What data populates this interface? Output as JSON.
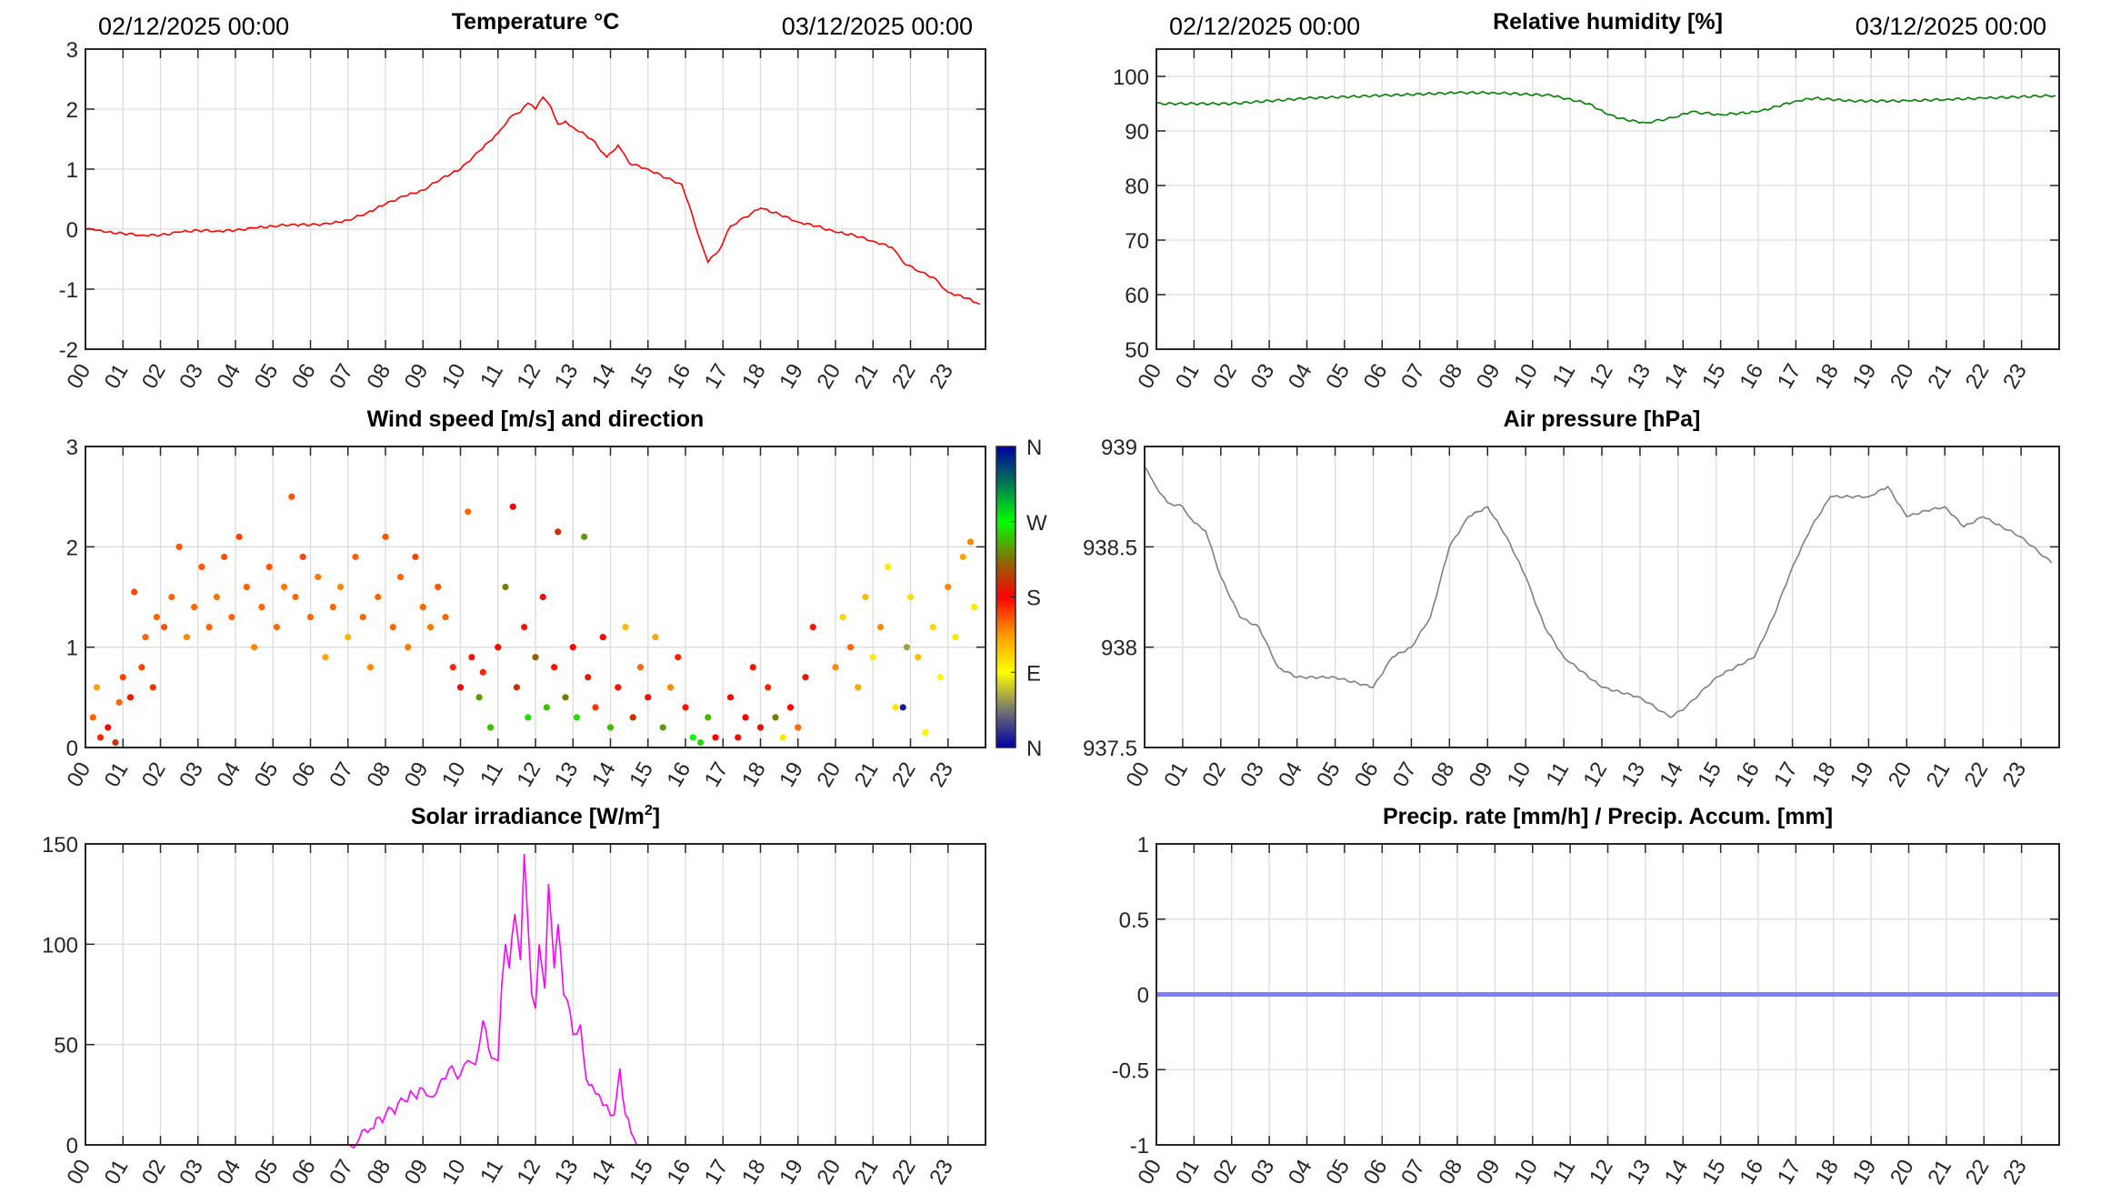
{
  "hour_ticks": [
    "00",
    "01",
    "02",
    "03",
    "04",
    "05",
    "06",
    "07",
    "08",
    "09",
    "10",
    "11",
    "12",
    "13",
    "14",
    "15",
    "16",
    "17",
    "18",
    "19",
    "20",
    "21",
    "22",
    "23"
  ],
  "chart_data": [
    {
      "id": "temperature",
      "type": "line",
      "title": "Temperature °C",
      "date_start": "02/12/2025 00:00",
      "date_end": "03/12/2025 00:00",
      "xlim": [
        0,
        24
      ],
      "ylim": [
        -2,
        3
      ],
      "yticks": [
        "-2",
        "-1",
        "0",
        "1",
        "2",
        "3"
      ],
      "ytick_values": [
        -2,
        -1,
        0,
        1,
        2,
        3
      ],
      "color": "#ff0000",
      "x": [
        0,
        0.3,
        0.5,
        1,
        1.5,
        2,
        2.5,
        3,
        3.5,
        4,
        4.5,
        5,
        5.5,
        6,
        6.5,
        7,
        7.5,
        8,
        8.5,
        9,
        9.5,
        10,
        10.5,
        11,
        11.3,
        11.6,
        11.8,
        12,
        12.2,
        12.4,
        12.6,
        12.8,
        13,
        13.5,
        13.9,
        14.2,
        14.5,
        15,
        15.5,
        15.9,
        16.1,
        16.4,
        16.6,
        16.9,
        17.2,
        17.6,
        18,
        18.5,
        19,
        19.5,
        20,
        20.5,
        21,
        21.5,
        21.8,
        22.2,
        22.6,
        23,
        23.5,
        23.85
      ],
      "y": [
        0,
        -0.02,
        -0.05,
        -0.07,
        -0.1,
        -0.1,
        -0.05,
        -0.02,
        -0.03,
        -0.02,
        0.02,
        0.05,
        0.08,
        0.07,
        0.09,
        0.15,
        0.27,
        0.42,
        0.55,
        0.65,
        0.85,
        1.0,
        1.3,
        1.6,
        1.85,
        1.95,
        2.1,
        2.0,
        2.2,
        2.05,
        1.75,
        1.8,
        1.7,
        1.5,
        1.2,
        1.4,
        1.1,
        1.0,
        0.85,
        0.75,
        0.4,
        -0.2,
        -0.55,
        -0.35,
        0.05,
        0.2,
        0.35,
        0.25,
        0.12,
        0.05,
        -0.05,
        -0.1,
        -0.2,
        -0.3,
        -0.55,
        -0.7,
        -0.8,
        -1.05,
        -1.15,
        -1.25
      ]
    },
    {
      "id": "humidity",
      "type": "line",
      "title": "Relative humidity [%]",
      "date_start": "02/12/2025 00:00",
      "date_end": "03/12/2025 00:00",
      "xlim": [
        0,
        24
      ],
      "ylim": [
        50,
        105
      ],
      "yticks": [
        "50",
        "60",
        "70",
        "80",
        "90",
        "100"
      ],
      "ytick_values": [
        50,
        60,
        70,
        80,
        90,
        100
      ],
      "color": "#008000",
      "x": [
        0,
        2,
        4,
        6,
        8,
        9,
        10.5,
        11.5,
        12,
        12.5,
        13,
        13.8,
        14.2,
        15,
        16,
        16.5,
        17,
        17.5,
        18.5,
        20,
        21,
        22,
        23.9
      ],
      "y": [
        95,
        95,
        96,
        96.5,
        97,
        97,
        96.5,
        95,
        93,
        92,
        91.5,
        92.5,
        93.5,
        93,
        93.5,
        94.5,
        95.5,
        96,
        95.5,
        95.5,
        95.8,
        96,
        96.5
      ]
    },
    {
      "id": "wind",
      "type": "scatter",
      "title": "Wind speed [m/s] and direction",
      "xlim": [
        0,
        24
      ],
      "ylim": [
        0,
        3
      ],
      "yticks": [
        "0",
        "1",
        "2",
        "3"
      ],
      "ytick_values": [
        0,
        1,
        2,
        3
      ],
      "colorbar_labels": [
        "N",
        "E",
        "S",
        "W",
        "N"
      ],
      "points": [
        [
          0.2,
          0.3,
          150
        ],
        [
          0.3,
          0.6,
          130
        ],
        [
          0.4,
          0.1,
          170
        ],
        [
          0.6,
          0.2,
          180
        ],
        [
          0.8,
          0.05,
          200
        ],
        [
          0.9,
          0.45,
          150
        ],
        [
          1.0,
          0.7,
          160
        ],
        [
          1.2,
          0.5,
          175
        ],
        [
          1.3,
          1.55,
          160
        ],
        [
          1.5,
          0.8,
          160
        ],
        [
          1.6,
          1.1,
          150
        ],
        [
          1.8,
          0.6,
          165
        ],
        [
          1.9,
          1.3,
          150
        ],
        [
          2.1,
          1.2,
          155
        ],
        [
          2.3,
          1.5,
          150
        ],
        [
          2.5,
          2.0,
          155
        ],
        [
          2.7,
          1.1,
          140
        ],
        [
          2.9,
          1.4,
          150
        ],
        [
          3.1,
          1.8,
          155
        ],
        [
          3.3,
          1.2,
          150
        ],
        [
          3.5,
          1.5,
          145
        ],
        [
          3.7,
          1.9,
          155
        ],
        [
          3.9,
          1.3,
          150
        ],
        [
          4.1,
          2.1,
          160
        ],
        [
          4.3,
          1.6,
          150
        ],
        [
          4.5,
          1.0,
          140
        ],
        [
          4.7,
          1.4,
          150
        ],
        [
          4.9,
          1.8,
          155
        ],
        [
          5.1,
          1.2,
          150
        ],
        [
          5.3,
          1.6,
          145
        ],
        [
          5.5,
          2.5,
          155
        ],
        [
          5.6,
          1.5,
          150
        ],
        [
          5.8,
          1.9,
          160
        ],
        [
          6.0,
          1.3,
          150
        ],
        [
          6.2,
          1.7,
          145
        ],
        [
          6.4,
          0.9,
          130
        ],
        [
          6.6,
          1.4,
          150
        ],
        [
          6.8,
          1.6,
          140
        ],
        [
          7.0,
          1.1,
          125
        ],
        [
          7.2,
          1.9,
          150
        ],
        [
          7.4,
          1.3,
          150
        ],
        [
          7.6,
          0.8,
          140
        ],
        [
          7.8,
          1.5,
          150
        ],
        [
          8.0,
          2.1,
          155
        ],
        [
          8.2,
          1.2,
          150
        ],
        [
          8.4,
          1.7,
          150
        ],
        [
          8.6,
          1.0,
          145
        ],
        [
          8.8,
          1.9,
          160
        ],
        [
          9.0,
          1.4,
          150
        ],
        [
          9.2,
          1.2,
          145
        ],
        [
          9.4,
          1.6,
          155
        ],
        [
          9.6,
          1.3,
          150
        ],
        [
          9.8,
          0.8,
          170
        ],
        [
          10.0,
          0.6,
          180
        ],
        [
          10.2,
          2.35,
          150
        ],
        [
          10.3,
          0.9,
          190
        ],
        [
          10.5,
          0.5,
          240
        ],
        [
          10.6,
          0.75,
          170
        ],
        [
          10.8,
          0.2,
          250
        ],
        [
          11.0,
          1.0,
          185
        ],
        [
          11.2,
          1.6,
          230
        ],
        [
          11.4,
          2.4,
          180
        ],
        [
          11.5,
          0.6,
          200
        ],
        [
          11.7,
          1.2,
          175
        ],
        [
          11.8,
          0.3,
          260
        ],
        [
          12.0,
          0.9,
          220
        ],
        [
          12.2,
          1.5,
          185
        ],
        [
          12.3,
          0.4,
          250
        ],
        [
          12.5,
          0.8,
          175
        ],
        [
          12.6,
          2.15,
          200
        ],
        [
          12.8,
          0.5,
          230
        ],
        [
          13.0,
          1.0,
          180
        ],
        [
          13.1,
          0.3,
          260
        ],
        [
          13.3,
          2.1,
          240
        ],
        [
          13.4,
          0.7,
          190
        ],
        [
          13.6,
          0.4,
          165
        ],
        [
          13.8,
          1.1,
          180
        ],
        [
          14.0,
          0.2,
          250
        ],
        [
          14.2,
          0.6,
          175
        ],
        [
          14.4,
          1.2,
          120
        ],
        [
          14.6,
          0.3,
          200
        ],
        [
          14.8,
          0.8,
          150
        ],
        [
          15.0,
          0.5,
          185
        ],
        [
          15.2,
          1.1,
          130
        ],
        [
          15.4,
          0.2,
          240
        ],
        [
          15.6,
          0.6,
          140
        ],
        [
          15.8,
          0.9,
          170
        ],
        [
          16.0,
          0.4,
          175
        ],
        [
          16.2,
          0.1,
          270
        ],
        [
          16.4,
          0.05,
          260
        ],
        [
          16.6,
          0.3,
          250
        ],
        [
          16.8,
          0.1,
          180
        ],
        [
          17.2,
          0.5,
          185
        ],
        [
          17.4,
          0.1,
          185
        ],
        [
          17.6,
          0.3,
          180
        ],
        [
          17.8,
          0.8,
          175
        ],
        [
          18.0,
          0.2,
          185
        ],
        [
          18.2,
          0.6,
          170
        ],
        [
          18.4,
          0.3,
          230
        ],
        [
          18.6,
          0.1,
          100
        ],
        [
          18.8,
          0.4,
          180
        ],
        [
          19.0,
          0.2,
          150
        ],
        [
          19.2,
          0.7,
          190
        ],
        [
          19.4,
          1.2,
          175
        ],
        [
          20.0,
          0.8,
          140
        ],
        [
          20.2,
          1.3,
          110
        ],
        [
          20.4,
          1.0,
          150
        ],
        [
          20.6,
          0.6,
          130
        ],
        [
          20.8,
          1.5,
          120
        ],
        [
          21.0,
          0.9,
          100
        ],
        [
          21.2,
          1.2,
          140
        ],
        [
          21.4,
          1.8,
          100
        ],
        [
          21.6,
          0.4,
          100
        ],
        [
          21.8,
          0.4,
          10
        ],
        [
          21.9,
          1.0,
          60
        ],
        [
          22.0,
          1.5,
          105
        ],
        [
          22.2,
          0.9,
          120
        ],
        [
          22.4,
          0.15,
          95
        ],
        [
          22.6,
          1.2,
          110
        ],
        [
          22.8,
          0.7,
          95
        ],
        [
          23.0,
          1.6,
          140
        ],
        [
          23.2,
          1.1,
          100
        ],
        [
          23.4,
          1.9,
          130
        ],
        [
          23.6,
          2.05,
          140
        ],
        [
          23.7,
          1.4,
          100
        ]
      ]
    },
    {
      "id": "pressure",
      "type": "line",
      "title": "Air pressure [hPa]",
      "xlim": [
        0,
        24
      ],
      "ylim": [
        937.5,
        939
      ],
      "yticks": [
        "937.5",
        "938",
        "938.5",
        "939"
      ],
      "ytick_values": [
        937.5,
        938,
        938.5,
        939
      ],
      "color": "#7f7f7f",
      "x": [
        0,
        0.15,
        0.3,
        0.6,
        1,
        1.3,
        1.6,
        2,
        2.5,
        3,
        3.5,
        4,
        5,
        6,
        6.5,
        7,
        7.5,
        8,
        8.5,
        9,
        9.5,
        10,
        10.5,
        11,
        12,
        13,
        13.8,
        14.2,
        15,
        16,
        16.5,
        17,
        17.5,
        18,
        19,
        19.5,
        20,
        20.5,
        21,
        21.5,
        22,
        22.5,
        23,
        23.8
      ],
      "y": [
        938.9,
        938.85,
        938.8,
        938.72,
        938.7,
        938.62,
        938.58,
        938.35,
        938.15,
        938.1,
        937.9,
        937.85,
        937.85,
        937.8,
        937.95,
        938.0,
        938.15,
        938.5,
        938.65,
        938.7,
        938.55,
        938.35,
        938.1,
        937.95,
        937.8,
        937.75,
        937.65,
        937.7,
        937.85,
        937.95,
        938.15,
        938.4,
        938.6,
        938.75,
        938.75,
        938.8,
        938.65,
        938.68,
        938.7,
        938.6,
        938.65,
        938.6,
        938.55,
        938.42
      ]
    },
    {
      "id": "solar",
      "type": "line",
      "title": "Solar irradiance [W/m",
      "title_sup": "2",
      "title_end": "]",
      "xlim": [
        0,
        24
      ],
      "ylim": [
        0,
        150
      ],
      "yticks": [
        "0",
        "50",
        "100",
        "150"
      ],
      "ytick_values": [
        0,
        50,
        100,
        150
      ],
      "color": "#ff00ff",
      "x": [
        0,
        7,
        7.3,
        7.6,
        8,
        8.5,
        9,
        9.2,
        9.5,
        9.7,
        10,
        10.2,
        10.4,
        10.6,
        10.75,
        10.9,
        11.0,
        11.1,
        11.2,
        11.3,
        11.45,
        11.6,
        11.7,
        11.8,
        11.9,
        12.0,
        12.1,
        12.25,
        12.35,
        12.5,
        12.6,
        12.75,
        12.85,
        13.0,
        13.2,
        13.35,
        13.5,
        13.7,
        13.9,
        14.1,
        14.25,
        14.4,
        14.55,
        14.7,
        24
      ],
      "y": [
        0,
        0,
        3,
        8,
        15,
        22,
        28,
        24,
        33,
        38,
        35,
        42,
        40,
        62,
        48,
        43,
        42,
        80,
        100,
        88,
        115,
        92,
        145,
        110,
        75,
        68,
        100,
        78,
        130,
        88,
        110,
        75,
        72,
        55,
        60,
        33,
        30,
        25,
        20,
        15,
        38,
        15,
        6,
        0,
        0
      ]
    },
    {
      "id": "precip",
      "type": "line",
      "title": "Precip. rate [mm/h] / Precip. Accum. [mm]",
      "xlim": [
        0,
        24
      ],
      "ylim": [
        -1,
        1
      ],
      "yticks": [
        "-1",
        "-0.5",
        "0",
        "0.5",
        "1"
      ],
      "ytick_values": [
        -1,
        -0.5,
        0,
        0.5,
        1
      ],
      "color": "#8080ff",
      "x": [
        0,
        24
      ],
      "y": [
        0,
        0
      ]
    }
  ]
}
